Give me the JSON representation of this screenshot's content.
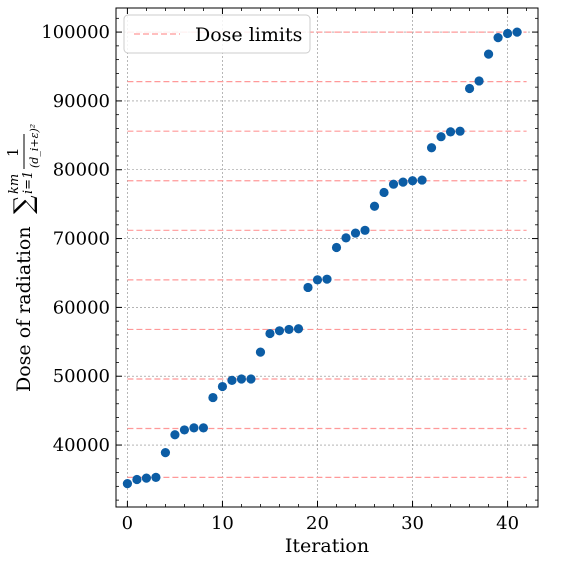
{
  "chart_data": {
    "type": "scatter",
    "xlabel": "Iteration",
    "ylabel": {
      "text": "Dose of radiation",
      "sum_symbol": "∑",
      "sum_upper": "km",
      "sum_lower": "i=1",
      "frac_numerator": "1",
      "frac_denominator": "(d_i+ε)²"
    },
    "xlim": [
      -1.2,
      43.2
    ],
    "ylim": [
      31000,
      103500
    ],
    "x_ticks": [
      0,
      10,
      20,
      30,
      40
    ],
    "y_ticks": [
      40000,
      50000,
      60000,
      70000,
      80000,
      90000,
      100000
    ],
    "grid": true,
    "legend": {
      "position": "top-left",
      "entries": [
        "Dose limits"
      ]
    },
    "colors": {
      "points": "#0C5DA5",
      "limits": "#FF9999",
      "grid": "#888888"
    },
    "points": {
      "x": [
        0,
        1,
        2,
        3,
        4,
        5,
        6,
        7,
        8,
        9,
        10,
        11,
        12,
        13,
        14,
        15,
        16,
        17,
        18,
        19,
        20,
        21,
        22,
        23,
        24,
        25,
        26,
        27,
        28,
        29,
        30,
        31,
        32,
        33,
        34,
        35,
        36,
        37,
        38,
        39,
        40,
        41
      ],
      "y": [
        34400,
        35000,
        35200,
        35300,
        38900,
        41500,
        42200,
        42500,
        42500,
        46900,
        48500,
        49400,
        49600,
        49600,
        53500,
        56200,
        56600,
        56800,
        56900,
        62900,
        64000,
        64100,
        68700,
        70100,
        70800,
        71200,
        74700,
        76700,
        77900,
        78200,
        78400,
        78500,
        83200,
        84800,
        85500,
        85600,
        91800,
        92900,
        96800,
        99200,
        99800,
        100000
      ]
    },
    "dose_limits": {
      "values": [
        35300,
        42400,
        49600,
        56800,
        64000,
        71200,
        78400,
        85600,
        92800,
        100000
      ],
      "x_range": [
        0,
        42
      ]
    }
  }
}
